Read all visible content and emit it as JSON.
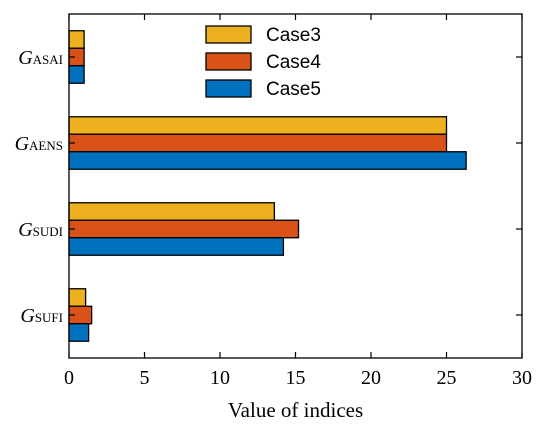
{
  "chart_data": {
    "type": "bar",
    "orientation": "horizontal",
    "categories": [
      {
        "main": "G",
        "sub": "ASAI",
        "sub_italic": false
      },
      {
        "main": "G",
        "sub": "AENS",
        "sub_italic": true
      },
      {
        "main": "G",
        "sub": "SUDI",
        "sub_italic": false
      },
      {
        "main": "G",
        "sub": "SUFI",
        "sub_italic": false
      }
    ],
    "series": [
      {
        "name": "Case3",
        "color": "#EDB120",
        "values": [
          1.0,
          25.0,
          13.6,
          1.1
        ]
      },
      {
        "name": "Case4",
        "color": "#D95319",
        "values": [
          1.0,
          25.0,
          15.2,
          1.5
        ]
      },
      {
        "name": "Case5",
        "color": "#0072BD",
        "values": [
          1.0,
          26.3,
          14.2,
          1.3
        ]
      }
    ],
    "xlabel": "Value of indices",
    "ylabel": "",
    "xlim": [
      0,
      30
    ],
    "xticks": [
      0,
      5,
      10,
      15,
      20,
      25,
      30
    ],
    "grid": false,
    "legend_position": "top"
  }
}
